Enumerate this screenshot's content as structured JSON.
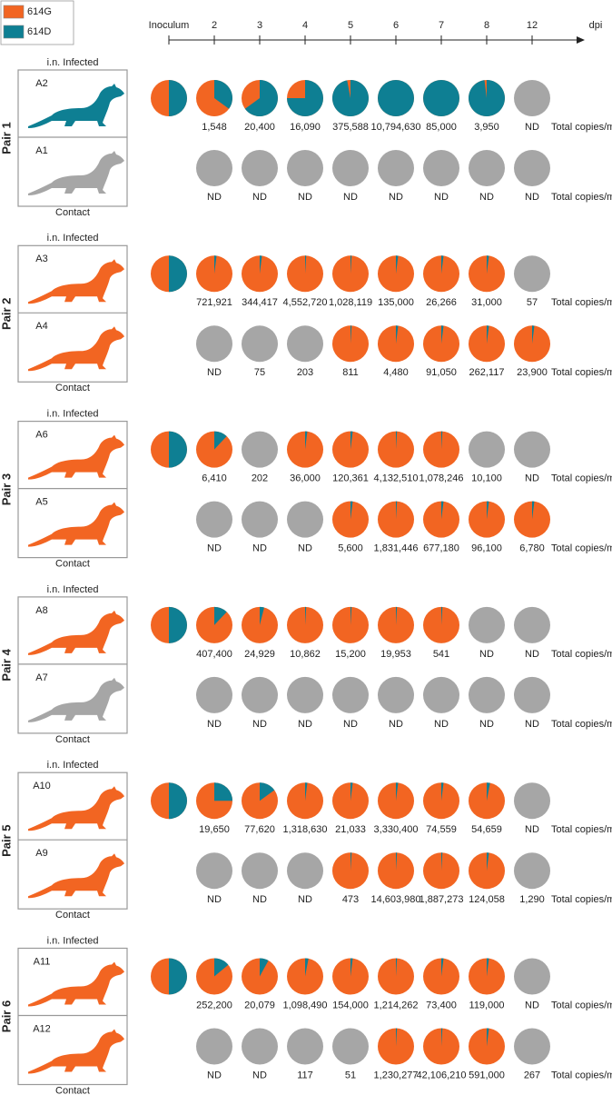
{
  "legend": [
    {
      "name": "614G",
      "color": "#f26522"
    },
    {
      "name": "614D",
      "color": "#0e7f93"
    }
  ],
  "no_data_color": "#a6a6a6",
  "timeline": {
    "labels": [
      "Inoculum",
      "2",
      "3",
      "4",
      "5",
      "6",
      "7",
      "8",
      "12"
    ],
    "unit": "dpi"
  },
  "copies_unit": "Total copies/ml",
  "pairs": [
    {
      "label": "Pair 1",
      "caption_top": "i.n. Infected",
      "caption_bottom": "Contact",
      "animals": [
        {
          "id": "A2",
          "color": "#0e7f93",
          "inoculum": {
            "pct_614D": 50
          },
          "days": [
            {
              "pct_614D": 35,
              "copies": "1,548"
            },
            {
              "pct_614D": 65,
              "copies": "20,400"
            },
            {
              "pct_614D": 75,
              "copies": "16,090"
            },
            {
              "pct_614D": 97,
              "copies": "375,588"
            },
            {
              "pct_614D": 100,
              "copies": "10,794,630"
            },
            {
              "pct_614D": 100,
              "copies": "85,000"
            },
            {
              "pct_614D": 98,
              "copies": "3,950"
            },
            {
              "pct_614D": null,
              "copies": "ND"
            }
          ]
        },
        {
          "id": "A1",
          "color": "#a6a6a6",
          "days": [
            {
              "pct_614D": null,
              "copies": "ND"
            },
            {
              "pct_614D": null,
              "copies": "ND"
            },
            {
              "pct_614D": null,
              "copies": "ND"
            },
            {
              "pct_614D": null,
              "copies": "ND"
            },
            {
              "pct_614D": null,
              "copies": "ND"
            },
            {
              "pct_614D": null,
              "copies": "ND"
            },
            {
              "pct_614D": null,
              "copies": "ND"
            },
            {
              "pct_614D": null,
              "copies": "ND"
            }
          ]
        }
      ]
    },
    {
      "label": "Pair 2",
      "caption_top": "i.n. Infected",
      "caption_bottom": "Contact",
      "animals": [
        {
          "id": "A3",
          "color": "#f26522",
          "inoculum": {
            "pct_614D": 50
          },
          "days": [
            {
              "pct_614D": 2,
              "copies": "721,921"
            },
            {
              "pct_614D": 2,
              "copies": "344,417"
            },
            {
              "pct_614D": 1,
              "copies": "4,552,720"
            },
            {
              "pct_614D": 1,
              "copies": "1,028,119"
            },
            {
              "pct_614D": 2,
              "copies": "135,000"
            },
            {
              "pct_614D": 2,
              "copies": "26,266"
            },
            {
              "pct_614D": 2,
              "copies": "31,000"
            },
            {
              "pct_614D": null,
              "copies": "57"
            }
          ]
        },
        {
          "id": "A4",
          "color": "#f26522",
          "days": [
            {
              "pct_614D": null,
              "copies": "ND"
            },
            {
              "pct_614D": null,
              "copies": "75"
            },
            {
              "pct_614D": null,
              "copies": "203"
            },
            {
              "pct_614D": 1,
              "copies": "811"
            },
            {
              "pct_614D": 2,
              "copies": "4,480"
            },
            {
              "pct_614D": 2,
              "copies": "91,050"
            },
            {
              "pct_614D": 2,
              "copies": "262,117"
            },
            {
              "pct_614D": 2,
              "copies": "23,900"
            }
          ]
        }
      ]
    },
    {
      "label": "Pair 3",
      "caption_top": "i.n. Infected",
      "caption_bottom": "Contact",
      "animals": [
        {
          "id": "A6",
          "color": "#f26522",
          "inoculum": {
            "pct_614D": 50
          },
          "days": [
            {
              "pct_614D": 12,
              "copies": "6,410"
            },
            {
              "pct_614D": null,
              "copies": "202"
            },
            {
              "pct_614D": 2,
              "copies": "36,000"
            },
            {
              "pct_614D": 2,
              "copies": "120,361"
            },
            {
              "pct_614D": 1,
              "copies": "4,132,510"
            },
            {
              "pct_614D": 1,
              "copies": "1,078,246"
            },
            {
              "pct_614D": null,
              "copies": "10,100"
            },
            {
              "pct_614D": null,
              "copies": "ND"
            }
          ]
        },
        {
          "id": "A5",
          "color": "#f26522",
          "days": [
            {
              "pct_614D": null,
              "copies": "ND"
            },
            {
              "pct_614D": null,
              "copies": "ND"
            },
            {
              "pct_614D": null,
              "copies": "ND"
            },
            {
              "pct_614D": 2,
              "copies": "5,600"
            },
            {
              "pct_614D": 1,
              "copies": "1,831,446"
            },
            {
              "pct_614D": 2,
              "copies": "677,180"
            },
            {
              "pct_614D": 2,
              "copies": "96,100"
            },
            {
              "pct_614D": 2,
              "copies": "6,780"
            }
          ]
        }
      ]
    },
    {
      "label": "Pair 4",
      "caption_top": "i.n. Infected",
      "caption_bottom": "Contact",
      "animals": [
        {
          "id": "A8",
          "color": "#f26522",
          "inoculum": {
            "pct_614D": 50
          },
          "days": [
            {
              "pct_614D": 12,
              "copies": "407,400"
            },
            {
              "pct_614D": 4,
              "copies": "24,929"
            },
            {
              "pct_614D": 1,
              "copies": "10,862"
            },
            {
              "pct_614D": 1,
              "copies": "15,200"
            },
            {
              "pct_614D": 1,
              "copies": "19,953"
            },
            {
              "pct_614D": 1,
              "copies": "541"
            },
            {
              "pct_614D": null,
              "copies": "ND"
            },
            {
              "pct_614D": null,
              "copies": "ND"
            }
          ]
        },
        {
          "id": "A7",
          "color": "#a6a6a6",
          "days": [
            {
              "pct_614D": null,
              "copies": "ND"
            },
            {
              "pct_614D": null,
              "copies": "ND"
            },
            {
              "pct_614D": null,
              "copies": "ND"
            },
            {
              "pct_614D": null,
              "copies": "ND"
            },
            {
              "pct_614D": null,
              "copies": "ND"
            },
            {
              "pct_614D": null,
              "copies": "ND"
            },
            {
              "pct_614D": null,
              "copies": "ND"
            },
            {
              "pct_614D": null,
              "copies": "ND"
            }
          ]
        }
      ]
    },
    {
      "label": "Pair 5",
      "caption_top": "i.n. Infected",
      "caption_bottom": "Contact",
      "animals": [
        {
          "id": "A10",
          "color": "#f26522",
          "inoculum": {
            "pct_614D": 50
          },
          "days": [
            {
              "pct_614D": 25,
              "copies": "19,650"
            },
            {
              "pct_614D": 15,
              "copies": "77,620"
            },
            {
              "pct_614D": 2,
              "copies": "1,318,630"
            },
            {
              "pct_614D": 2,
              "copies": "21,033"
            },
            {
              "pct_614D": 2,
              "copies": "3,330,400"
            },
            {
              "pct_614D": 2,
              "copies": "74,559"
            },
            {
              "pct_614D": 3,
              "copies": "54,659"
            },
            {
              "pct_614D": null,
              "copies": "ND"
            }
          ]
        },
        {
          "id": "A9",
          "color": "#f26522",
          "days": [
            {
              "pct_614D": null,
              "copies": "ND"
            },
            {
              "pct_614D": null,
              "copies": "ND"
            },
            {
              "pct_614D": null,
              "copies": "ND"
            },
            {
              "pct_614D": 1,
              "copies": "473"
            },
            {
              "pct_614D": 1,
              "copies": "14,603,980"
            },
            {
              "pct_614D": 1,
              "copies": "1,887,273"
            },
            {
              "pct_614D": 2,
              "copies": "124,058"
            },
            {
              "pct_614D": null,
              "copies": "1,290"
            }
          ]
        }
      ]
    },
    {
      "label": "Pair 6",
      "caption_top": "i.n. Infected",
      "caption_bottom": "Contact",
      "animals": [
        {
          "id": "A11",
          "color": "#f26522",
          "inoculum": {
            "pct_614D": 50
          },
          "days": [
            {
              "pct_614D": 14,
              "copies": "252,200"
            },
            {
              "pct_614D": 8,
              "copies": "20,079"
            },
            {
              "pct_614D": 3,
              "copies": "1,098,490"
            },
            {
              "pct_614D": 2,
              "copies": "154,000"
            },
            {
              "pct_614D": 1,
              "copies": "1,214,262"
            },
            {
              "pct_614D": 2,
              "copies": "73,400"
            },
            {
              "pct_614D": 2,
              "copies": "119,000"
            },
            {
              "pct_614D": null,
              "copies": "ND"
            }
          ]
        },
        {
          "id": "A12",
          "color": "#f26522",
          "days": [
            {
              "pct_614D": null,
              "copies": "ND"
            },
            {
              "pct_614D": null,
              "copies": "ND"
            },
            {
              "pct_614D": null,
              "copies": "117"
            },
            {
              "pct_614D": null,
              "copies": "51"
            },
            {
              "pct_614D": 1,
              "copies": "1,230,277"
            },
            {
              "pct_614D": 1,
              "copies": "42,106,210"
            },
            {
              "pct_614D": 2,
              "copies": "591,000"
            },
            {
              "pct_614D": null,
              "copies": "267"
            }
          ]
        }
      ]
    }
  ]
}
